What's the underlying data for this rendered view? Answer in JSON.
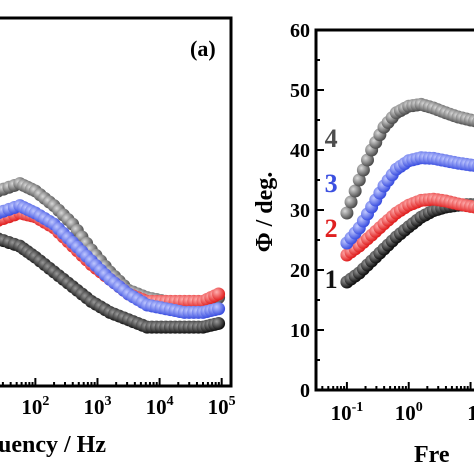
{
  "chart_data": [
    {
      "panel_label": "(a)",
      "type": "scatter",
      "xlabel": "uency / Hz",
      "x_scale": "log",
      "xlim_exponent": [
        1.35,
        5.15
      ],
      "x_tick_labels": [
        {
          "base": "10",
          "exp": "2"
        },
        {
          "base": "10",
          "exp": "3"
        },
        {
          "base": "10",
          "exp": "4"
        },
        {
          "base": "10",
          "exp": "5"
        }
      ],
      "series": [
        {
          "color": "#4d4d4d",
          "marker": "sphere",
          "log_x": [
            1.4,
            1.75,
            2.0,
            2.3,
            2.6,
            2.9,
            3.2,
            3.5,
            3.8,
            4.1,
            4.4,
            4.7,
            4.95
          ],
          "rel_y": [
            0.53,
            0.55,
            0.53,
            0.49,
            0.44,
            0.37,
            0.31,
            0.26,
            0.24,
            0.23,
            0.22,
            0.22,
            0.24
          ]
        },
        {
          "color": "#e02020",
          "marker": "sphere",
          "log_x": [
            1.4,
            1.75,
            2.0,
            2.3,
            2.6,
            2.9,
            3.2,
            3.5,
            3.8,
            4.1,
            4.4,
            4.7,
            4.95
          ],
          "rel_y": [
            0.45,
            0.47,
            0.46,
            0.43,
            0.38,
            0.33,
            0.29,
            0.25,
            0.23,
            0.23,
            0.23,
            0.23,
            0.25
          ]
        },
        {
          "color": "#3b4fe0",
          "marker": "sphere",
          "log_x": [
            1.4,
            1.75,
            2.0,
            2.3,
            2.6,
            2.9,
            3.2,
            3.5,
            3.8,
            4.1,
            4.4,
            4.7,
            4.95
          ],
          "rel_y": [
            0.47,
            0.49,
            0.47,
            0.44,
            0.39,
            0.34,
            0.29,
            0.25,
            0.22,
            0.21,
            0.2,
            0.2,
            0.21
          ]
        },
        {
          "color": "#111111",
          "marker": "sphere",
          "log_x": [
            1.4,
            1.75,
            2.0,
            2.3,
            2.6,
            2.9,
            3.2,
            3.5,
            3.8,
            4.1,
            4.4,
            4.7,
            4.95
          ],
          "rel_y": [
            0.4,
            0.38,
            0.35,
            0.31,
            0.27,
            0.23,
            0.2,
            0.18,
            0.16,
            0.16,
            0.16,
            0.16,
            0.17
          ]
        }
      ]
    },
    {
      "panel_label": "",
      "type": "scatter",
      "xlabel": "Fre",
      "ylabel": "Φ / deg.",
      "x_scale": "log",
      "xlim_exponent": [
        -1.5,
        1.25
      ],
      "ylim": [
        0,
        60
      ],
      "y_ticks": [
        0,
        10,
        20,
        30,
        40,
        50,
        60
      ],
      "x_tick_labels": [
        {
          "base": "10",
          "exp": "-1"
        },
        {
          "base": "10",
          "exp": "0"
        },
        {
          "base": "1",
          "exp": ""
        }
      ],
      "series": [
        {
          "name": "4",
          "color": "#4d4d4d",
          "marker": "sphere",
          "log_x": [
            -1.0,
            -0.8,
            -0.6,
            -0.4,
            -0.2,
            0.0,
            0.2,
            0.4,
            0.6,
            0.8,
            1.0,
            1.2
          ],
          "y": [
            29.5,
            35,
            40,
            43.8,
            46.2,
            47.3,
            47.6,
            47.0,
            46.2,
            45.5,
            45.0,
            44.6
          ]
        },
        {
          "name": "3",
          "color": "#3b4fe0",
          "marker": "sphere",
          "log_x": [
            -1.0,
            -0.8,
            -0.6,
            -0.4,
            -0.2,
            0.0,
            0.2,
            0.4,
            0.6,
            0.8,
            1.0,
            1.2
          ],
          "y": [
            24.5,
            27,
            30.5,
            34,
            36.8,
            38.2,
            38.7,
            38.6,
            38.2,
            37.8,
            37.5,
            37.3
          ]
        },
        {
          "name": "2",
          "color": "#e02020",
          "marker": "sphere",
          "log_x": [
            -1.0,
            -0.8,
            -0.6,
            -0.4,
            -0.2,
            0.0,
            0.2,
            0.4,
            0.6,
            0.8,
            1.0,
            1.2
          ],
          "y": [
            22.5,
            24,
            25.8,
            27.7,
            29.5,
            30.8,
            31.6,
            31.8,
            31.5,
            31.0,
            30.6,
            30.3
          ]
        },
        {
          "name": "1",
          "color": "#111111",
          "marker": "sphere",
          "log_x": [
            -1.0,
            -0.8,
            -0.6,
            -0.4,
            -0.2,
            0.0,
            0.2,
            0.4,
            0.6,
            0.8,
            1.0,
            1.2
          ],
          "y": [
            18,
            19.5,
            21.5,
            23.5,
            25.5,
            27.2,
            28.8,
            29.9,
            30.5,
            30.8,
            30.9,
            30.9
          ]
        }
      ]
    }
  ]
}
